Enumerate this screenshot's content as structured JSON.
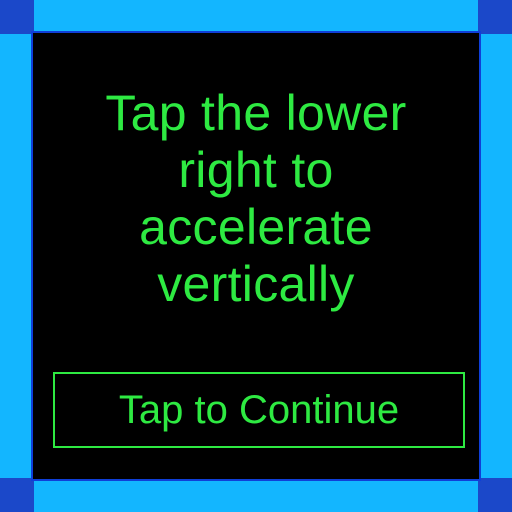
{
  "instruction": {
    "lines": [
      "Tap the lower",
      "right to",
      "accelerate",
      "vertically"
    ]
  },
  "button": {
    "label": "Tap to Continue"
  },
  "colors": {
    "text": "#2eea42",
    "panel": "#000000",
    "frame": "#13b6ff",
    "corner": "#1b48c9"
  }
}
